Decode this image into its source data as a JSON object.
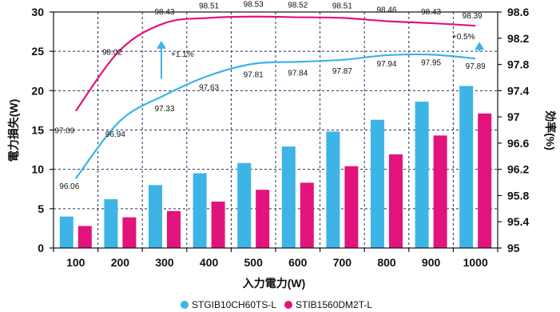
{
  "chart_data": {
    "type": "bar",
    "categories": [
      "100",
      "200",
      "300",
      "400",
      "500",
      "600",
      "700",
      "800",
      "900",
      "1000"
    ],
    "xlabel": "入力電力(W)",
    "ylabel_left": "電力損失(W)",
    "ylabel_right": "効率(%)",
    "ylim_left": [
      0,
      30
    ],
    "yticks_left": [
      "0",
      "5",
      "10",
      "15",
      "20",
      "25",
      "30"
    ],
    "ylim_right": [
      95,
      98.6
    ],
    "yticks_right": [
      "95",
      "95.4",
      "95.8",
      "96.2",
      "96.6",
      "97",
      "97.4",
      "97.8",
      "98.2",
      "98.6"
    ],
    "grid": "dashed horizontal and vertical",
    "legend_position": "bottom",
    "bar_series": [
      {
        "name": "STGIB10CH60TS-L",
        "color": "#3db4e6",
        "values": [
          4.0,
          6.2,
          8.0,
          9.5,
          10.8,
          12.9,
          14.8,
          16.3,
          18.6,
          20.6
        ]
      },
      {
        "name": "STIB1560DM2T-L",
        "color": "#e2137d",
        "values": [
          2.8,
          3.9,
          4.7,
          5.9,
          7.4,
          8.3,
          10.4,
          11.9,
          14.3,
          17.1
        ]
      }
    ],
    "line_series": [
      {
        "name": "STIB1560DM2T-L",
        "color": "#e2137d",
        "values": [
          97.09,
          98.02,
          98.43,
          98.51,
          98.53,
          98.52,
          98.51,
          98.46,
          98.43,
          98.39
        ]
      },
      {
        "name": "STGIB10CH60TS-L",
        "color": "#3db4e6",
        "values": [
          96.06,
          96.94,
          97.33,
          97.63,
          97.81,
          97.84,
          97.87,
          97.94,
          97.95,
          97.89
        ]
      }
    ],
    "annotations": [
      {
        "text": "+1.1%",
        "at_category": "300"
      },
      {
        "text": "+0.5%",
        "at_category": "1000"
      }
    ]
  }
}
